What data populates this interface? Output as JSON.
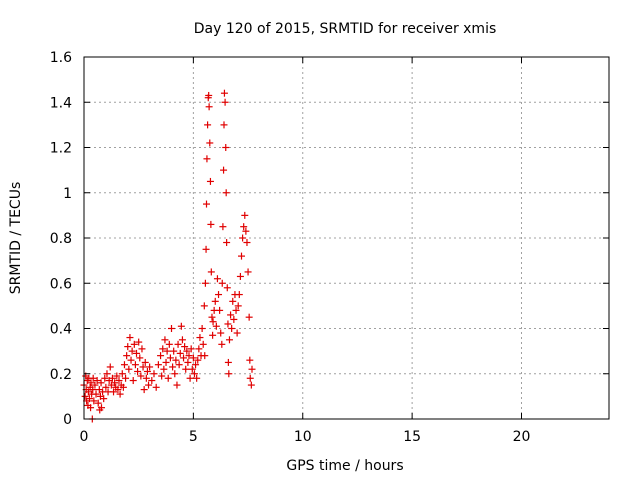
{
  "chart_data": {
    "type": "scatter",
    "title": "Day 120 of 2015, SRMTID for receiver xmis",
    "xlabel": "GPS time / hours",
    "ylabel": "SRMTID / TECUs",
    "xlim": [
      0,
      24
    ],
    "ylim": [
      0,
      1.6
    ],
    "xticks": [
      0,
      5,
      10,
      15,
      20
    ],
    "xtick_labels": [
      "0",
      "5",
      "10",
      "15",
      "20"
    ],
    "yticks": [
      0,
      0.2,
      0.4,
      0.6,
      0.8,
      1.0,
      1.2,
      1.4,
      1.6
    ],
    "ytick_labels": [
      "0",
      "0.2",
      "0.4",
      "0.6",
      "0.8",
      "1",
      "1.2",
      "1.4",
      "1.6"
    ],
    "grid": true,
    "marker": "plus",
    "marker_color": "#e00000",
    "series": [
      {
        "name": "SRMTID",
        "points": [
          [
            0.0,
            0.15
          ],
          [
            0.05,
            0.1
          ],
          [
            0.08,
            0.19
          ],
          [
            0.1,
            0.13
          ],
          [
            0.12,
            0.08
          ],
          [
            0.15,
            0.17
          ],
          [
            0.18,
            0.06
          ],
          [
            0.2,
            0.12
          ],
          [
            0.22,
            0.18
          ],
          [
            0.25,
            0.09
          ],
          [
            0.28,
            0.14
          ],
          [
            0.3,
            0.05
          ],
          [
            0.32,
            0.16
          ],
          [
            0.35,
            0.11
          ],
          [
            0.38,
            0.0
          ],
          [
            0.4,
            0.13
          ],
          [
            0.42,
            0.18
          ],
          [
            0.45,
            0.08
          ],
          [
            0.5,
            0.15
          ],
          [
            0.55,
            0.11
          ],
          [
            0.6,
            0.17
          ],
          [
            0.65,
            0.07
          ],
          [
            0.7,
            0.13
          ],
          [
            0.72,
            0.04
          ],
          [
            0.75,
            0.1
          ],
          [
            0.78,
            0.16
          ],
          [
            0.8,
            0.05
          ],
          [
            0.85,
            0.12
          ],
          [
            0.9,
            0.09
          ],
          [
            0.95,
            0.18
          ],
          [
            1.0,
            0.14
          ],
          [
            1.05,
            0.2
          ],
          [
            1.1,
            0.12
          ],
          [
            1.15,
            0.17
          ],
          [
            1.2,
            0.23
          ],
          [
            1.25,
            0.15
          ],
          [
            1.3,
            0.18
          ],
          [
            1.35,
            0.12
          ],
          [
            1.4,
            0.16
          ],
          [
            1.45,
            0.14
          ],
          [
            1.5,
            0.19
          ],
          [
            1.55,
            0.13
          ],
          [
            1.6,
            0.17
          ],
          [
            1.65,
            0.11
          ],
          [
            1.7,
            0.15
          ],
          [
            1.75,
            0.2
          ],
          [
            1.8,
            0.14
          ],
          [
            1.85,
            0.24
          ],
          [
            1.9,
            0.18
          ],
          [
            1.95,
            0.28
          ],
          [
            2.0,
            0.32
          ],
          [
            2.05,
            0.22
          ],
          [
            2.1,
            0.36
          ],
          [
            2.15,
            0.26
          ],
          [
            2.2,
            0.3
          ],
          [
            2.25,
            0.17
          ],
          [
            2.3,
            0.33
          ],
          [
            2.35,
            0.24
          ],
          [
            2.4,
            0.29
          ],
          [
            2.45,
            0.21
          ],
          [
            2.5,
            0.34
          ],
          [
            2.55,
            0.27
          ],
          [
            2.6,
            0.19
          ],
          [
            2.65,
            0.31
          ],
          [
            2.7,
            0.23
          ],
          [
            2.75,
            0.13
          ],
          [
            2.8,
            0.25
          ],
          [
            2.85,
            0.18
          ],
          [
            2.9,
            0.21
          ],
          [
            2.95,
            0.15
          ],
          [
            3.0,
            0.23
          ],
          [
            3.1,
            0.17
          ],
          [
            3.2,
            0.2
          ],
          [
            3.3,
            0.14
          ],
          [
            3.4,
            0.24
          ],
          [
            3.5,
            0.28
          ],
          [
            3.55,
            0.19
          ],
          [
            3.6,
            0.31
          ],
          [
            3.65,
            0.22
          ],
          [
            3.7,
            0.35
          ],
          [
            3.75,
            0.25
          ],
          [
            3.8,
            0.3
          ],
          [
            3.85,
            0.18
          ],
          [
            3.9,
            0.33
          ],
          [
            3.95,
            0.27
          ],
          [
            4.0,
            0.4
          ],
          [
            4.05,
            0.23
          ],
          [
            4.1,
            0.3
          ],
          [
            4.15,
            0.2
          ],
          [
            4.2,
            0.26
          ],
          [
            4.25,
            0.15
          ],
          [
            4.3,
            0.33
          ],
          [
            4.35,
            0.24
          ],
          [
            4.4,
            0.29
          ],
          [
            4.45,
            0.41
          ],
          [
            4.5,
            0.35
          ],
          [
            4.55,
            0.27
          ],
          [
            4.6,
            0.32
          ],
          [
            4.65,
            0.22
          ],
          [
            4.7,
            0.3
          ],
          [
            4.75,
            0.25
          ],
          [
            4.8,
            0.28
          ],
          [
            4.85,
            0.18
          ],
          [
            4.9,
            0.31
          ],
          [
            4.95,
            0.22
          ],
          [
            5.0,
            0.27
          ],
          [
            5.05,
            0.2
          ],
          [
            5.1,
            0.24
          ],
          [
            5.15,
            0.18
          ],
          [
            5.2,
            0.26
          ],
          [
            5.25,
            0.31
          ],
          [
            5.3,
            0.36
          ],
          [
            5.35,
            0.28
          ],
          [
            5.4,
            0.4
          ],
          [
            5.45,
            0.33
          ],
          [
            5.5,
            0.5
          ],
          [
            5.52,
            0.28
          ],
          [
            5.55,
            0.6
          ],
          [
            5.58,
            0.75
          ],
          [
            5.6,
            0.95
          ],
          [
            5.62,
            1.15
          ],
          [
            5.65,
            1.3
          ],
          [
            5.68,
            1.42
          ],
          [
            5.7,
            1.43
          ],
          [
            5.72,
            1.38
          ],
          [
            5.75,
            1.22
          ],
          [
            5.78,
            1.05
          ],
          [
            5.8,
            0.86
          ],
          [
            5.82,
            0.65
          ],
          [
            5.85,
            0.45
          ],
          [
            5.88,
            0.37
          ],
          [
            5.9,
            0.43
          ],
          [
            5.95,
            0.48
          ],
          [
            6.0,
            0.52
          ],
          [
            6.05,
            0.41
          ],
          [
            6.1,
            0.62
          ],
          [
            6.15,
            0.55
          ],
          [
            6.2,
            0.48
          ],
          [
            6.25,
            0.38
          ],
          [
            6.3,
            0.33
          ],
          [
            6.32,
            0.6
          ],
          [
            6.35,
            0.85
          ],
          [
            6.38,
            1.1
          ],
          [
            6.4,
            1.3
          ],
          [
            6.42,
            1.44
          ],
          [
            6.45,
            1.4
          ],
          [
            6.48,
            1.2
          ],
          [
            6.5,
            1.0
          ],
          [
            6.52,
            0.78
          ],
          [
            6.55,
            0.58
          ],
          [
            6.58,
            0.42
          ],
          [
            6.6,
            0.25
          ],
          [
            6.62,
            0.2
          ],
          [
            6.65,
            0.35
          ],
          [
            6.7,
            0.46
          ],
          [
            6.75,
            0.4
          ],
          [
            6.8,
            0.52
          ],
          [
            6.85,
            0.44
          ],
          [
            6.9,
            0.55
          ],
          [
            6.95,
            0.48
          ],
          [
            7.0,
            0.38
          ],
          [
            7.05,
            0.5
          ],
          [
            7.1,
            0.55
          ],
          [
            7.15,
            0.63
          ],
          [
            7.2,
            0.72
          ],
          [
            7.25,
            0.8
          ],
          [
            7.3,
            0.85
          ],
          [
            7.35,
            0.9
          ],
          [
            7.4,
            0.83
          ],
          [
            7.45,
            0.78
          ],
          [
            7.5,
            0.65
          ],
          [
            7.55,
            0.45
          ],
          [
            7.58,
            0.26
          ],
          [
            7.6,
            0.18
          ],
          [
            7.65,
            0.15
          ],
          [
            7.68,
            0.22
          ]
        ]
      }
    ]
  }
}
